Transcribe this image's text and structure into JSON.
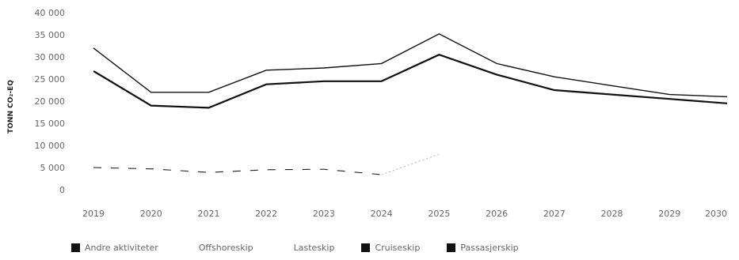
{
  "chart_data": {
    "type": "line",
    "ylabel": "TONN CO₂-EQ",
    "ylim": [
      0,
      40000
    ],
    "yticks": [
      "40 000",
      "35 000",
      "30 000",
      "25 000",
      "20 000",
      "15 000",
      "10 000",
      "5 000",
      "0"
    ],
    "categories": [
      "2019",
      "2020",
      "2021",
      "2022",
      "2023",
      "2024",
      "2025",
      "2026",
      "2027",
      "2028",
      "2029",
      "2030"
    ],
    "series": [
      {
        "name": "Andre aktiviteter",
        "values": [
          5000,
          4700,
          3900,
          4500,
          4600,
          3400,
          null,
          null,
          null,
          null,
          null,
          null
        ],
        "color": "#222222",
        "style": "dash"
      },
      {
        "name": "Offshoreskip",
        "values": [
          null,
          null,
          null,
          null,
          null,
          3400,
          8000,
          null,
          null,
          null,
          null,
          null
        ],
        "color": "#bbbbbb",
        "style": "dot"
      },
      {
        "name": "Lasteskip",
        "values": [
          null,
          null,
          null,
          null,
          null,
          null,
          null,
          null,
          null,
          null,
          null,
          null
        ],
        "color": "#ffffff",
        "style": "solid"
      },
      {
        "name": "Cruiseskip",
        "values": [
          26800,
          19000,
          18500,
          23800,
          24500,
          24500,
          30500,
          26000,
          22500,
          21500,
          20500,
          19500
        ],
        "color": "#111111",
        "style": "solid"
      },
      {
        "name": "Passasjerskip",
        "values": [
          32000,
          22000,
          22000,
          27000,
          27500,
          28500,
          35200,
          28500,
          25500,
          23500,
          21500,
          21000
        ],
        "color": "#111111",
        "style": "solid"
      }
    ],
    "legend": "bottom",
    "grid": false
  }
}
